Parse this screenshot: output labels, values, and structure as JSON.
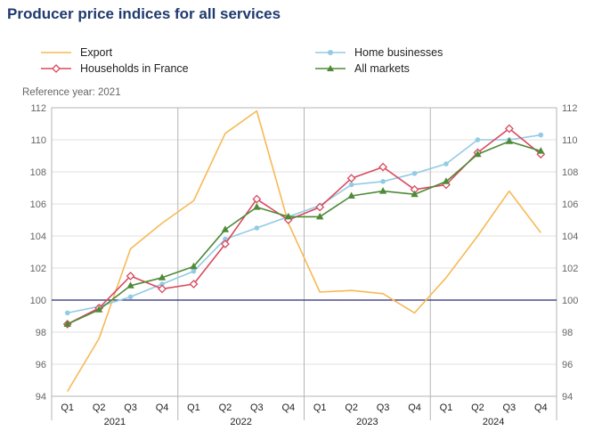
{
  "title": "Producer price indices for all services",
  "reference_note": "Reference year: 2021",
  "chart_data": {
    "type": "line",
    "title": "Producer price indices for all services",
    "x": [
      "Q1",
      "Q2",
      "Q3",
      "Q4",
      "Q1",
      "Q2",
      "Q3",
      "Q4",
      "Q1",
      "Q2",
      "Q3",
      "Q4",
      "Q1",
      "Q2",
      "Q3",
      "Q4"
    ],
    "year_groups": [
      {
        "label": "2021",
        "quarters": 4
      },
      {
        "label": "2022",
        "quarters": 4
      },
      {
        "label": "2023",
        "quarters": 4
      },
      {
        "label": "2024",
        "quarters": 4
      }
    ],
    "ylim": [
      94,
      112
    ],
    "yticks": [
      94,
      96,
      98,
      100,
      102,
      104,
      106,
      108,
      110,
      112
    ],
    "reference_line": 100,
    "grid": "horizontal",
    "legend_position": "top",
    "series": [
      {
        "name": "Export",
        "color": "#f7b955",
        "marker": "none",
        "values": [
          94.3,
          97.6,
          103.2,
          104.8,
          106.2,
          110.4,
          111.8,
          104.8,
          100.5,
          100.6,
          100.4,
          99.2,
          101.4,
          104.0,
          106.8,
          104.2
        ]
      },
      {
        "name": "Home businesses",
        "color": "#93cbe4",
        "marker": "circle",
        "values": [
          99.2,
          99.6,
          100.2,
          101.0,
          101.8,
          103.8,
          104.5,
          105.2,
          105.9,
          107.2,
          107.4,
          107.9,
          108.5,
          110.0,
          110.0,
          110.3
        ]
      },
      {
        "name": "Households in France",
        "color": "#d94a5e",
        "marker": "diamond",
        "values": [
          98.5,
          99.5,
          101.5,
          100.7,
          101.0,
          103.5,
          106.3,
          105.0,
          105.8,
          107.6,
          108.3,
          106.9,
          107.2,
          109.2,
          110.7,
          109.1
        ]
      },
      {
        "name": "All markets",
        "color": "#4f8a38",
        "marker": "triangle",
        "values": [
          98.5,
          99.4,
          100.9,
          101.4,
          102.1,
          104.4,
          105.8,
          105.2,
          105.2,
          106.5,
          106.8,
          106.6,
          107.4,
          109.1,
          109.9,
          109.3
        ]
      }
    ]
  }
}
